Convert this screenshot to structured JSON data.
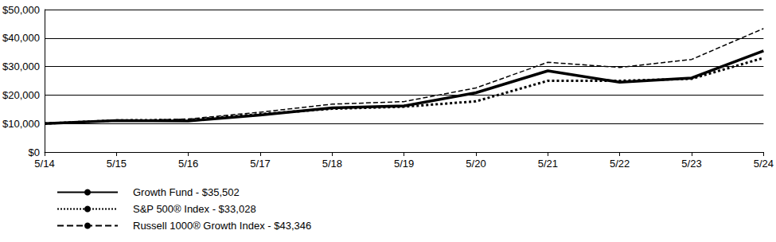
{
  "chart_data": {
    "type": "line",
    "categories": [
      "5/14",
      "5/15",
      "5/16",
      "5/17",
      "5/18",
      "5/19",
      "5/20",
      "5/21",
      "5/22",
      "5/23",
      "5/24"
    ],
    "series": [
      {
        "name": "Growth Fund - $35,502",
        "color": "#000000",
        "line_style": "solid",
        "values": [
          10000,
          11000,
          10900,
          13000,
          15500,
          16200,
          20800,
          28500,
          24500,
          26000,
          35502
        ]
      },
      {
        "name": "S&P 500® Index - $33,028",
        "color": "#000000",
        "line_style": "dotted",
        "values": [
          10000,
          11100,
          11300,
          13300,
          15200,
          15900,
          17800,
          25000,
          25000,
          25700,
          33028
        ]
      },
      {
        "name": "Russell 1000® Growth Index - $43,346",
        "color": "#000000",
        "line_style": "dashed",
        "values": [
          10000,
          11000,
          11600,
          14000,
          16800,
          17700,
          22500,
          31500,
          29700,
          32500,
          43346
        ]
      }
    ],
    "ylim": [
      0,
      50000
    ],
    "yticks": [
      {
        "value": 0,
        "label": "$0"
      },
      {
        "value": 10000,
        "label": "$10,000"
      },
      {
        "value": 20000,
        "label": "$20,000"
      },
      {
        "value": 30000,
        "label": "$30,000"
      },
      {
        "value": 40000,
        "label": "$40,000"
      },
      {
        "value": 50000,
        "label": "$50,000"
      }
    ],
    "grid": true,
    "legend": "bottom-left"
  }
}
